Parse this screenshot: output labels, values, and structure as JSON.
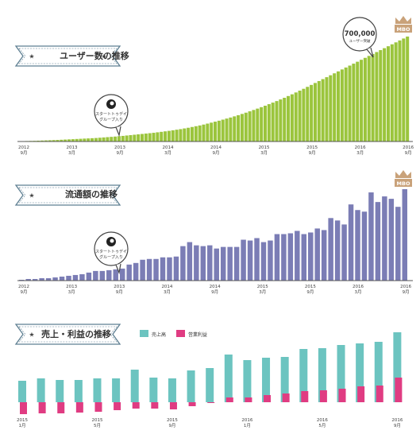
{
  "colors": {
    "green": "#9BC53D",
    "purple": "#7B7DB5",
    "teal": "#6CC4C0",
    "magenta": "#E03C82",
    "ribbon_border": "#5E7F92",
    "axis": "#555555",
    "crown": "#C9A27A"
  },
  "crown_label": "MBO",
  "callouts": {
    "startup_line1": "スタートトゥデイ",
    "startup_line2": "グループ入り",
    "users_value": "700,000",
    "users_unit": "ユーザー突破"
  },
  "chart_data": [
    {
      "type": "bar",
      "title": "ユーザー数の推移",
      "x_ticks": [
        {
          "i": 0,
          "year": "2012",
          "month": "9月"
        },
        {
          "i": 6,
          "year": "2013",
          "month": "3月"
        },
        {
          "i": 12,
          "year": "2013",
          "month": "9月"
        },
        {
          "i": 18,
          "year": "2014",
          "month": "3月"
        },
        {
          "i": 24,
          "year": "2014",
          "month": "9月"
        },
        {
          "i": 30,
          "year": "2015",
          "month": "3月"
        },
        {
          "i": 36,
          "year": "2015",
          "month": "9月"
        },
        {
          "i": 42,
          "year": "2016",
          "month": "3月"
        },
        {
          "i": 48,
          "year": "2016",
          "month": "9月"
        }
      ],
      "values": [
        3000,
        4000,
        5000,
        6000,
        7000,
        8500,
        10000,
        11500,
        13000,
        14500,
        16000,
        18000,
        20000,
        22000,
        24000,
        26000,
        28000,
        30000,
        32000,
        34000,
        36000,
        39000,
        42000,
        45000,
        48000,
        51000,
        55000,
        58000,
        62000,
        66000,
        70000,
        74000,
        78000,
        82000,
        86000,
        90000,
        95000,
        100000,
        105000,
        110000,
        116000,
        122000,
        128000,
        135000,
        142000,
        150000,
        158000,
        166000,
        175000,
        185000,
        195000,
        205000,
        215000,
        226000,
        237000,
        248000,
        260000,
        272000,
        285000,
        298000,
        312000,
        326000,
        340000,
        355000,
        370000,
        386000,
        402000,
        418000,
        435000,
        452000,
        470000,
        488000,
        507000,
        526000,
        545000,
        565000,
        585000,
        605000,
        625000,
        645000,
        665000,
        685000,
        705000,
        725000,
        745000,
        765000,
        785000,
        805000,
        825000,
        845000,
        865000,
        885000,
        905000,
        925000,
        945000,
        965000,
        985000,
        1005000,
        1025000,
        1045000,
        1065000,
        1085000
      ]
    },
    {
      "type": "bar",
      "title": "流通額の推移",
      "x_ticks": [
        {
          "i": 0,
          "year": "2012",
          "month": "9月"
        },
        {
          "i": 6,
          "year": "2013",
          "month": "3月"
        },
        {
          "i": 12,
          "year": "2013",
          "month": "9月"
        },
        {
          "i": 18,
          "year": "2014",
          "month": "3月"
        },
        {
          "i": 24,
          "year": "2014",
          "month": "9月"
        },
        {
          "i": 30,
          "year": "2015",
          "month": "3月"
        },
        {
          "i": 36,
          "year": "2015",
          "month": "9月"
        },
        {
          "i": 42,
          "year": "2016",
          "month": "3月"
        },
        {
          "i": 48,
          "year": "2016",
          "month": "9月"
        }
      ],
      "values": [
        1,
        2,
        2,
        3,
        3,
        4,
        5,
        6,
        7,
        8,
        10,
        12,
        12,
        13,
        14,
        15,
        20,
        22,
        26,
        27,
        27,
        29,
        29,
        30,
        43,
        48,
        44,
        43,
        44,
        40,
        42,
        42,
        42,
        51,
        50,
        53,
        48,
        50,
        58,
        58,
        59,
        62,
        58,
        60,
        65,
        63,
        78,
        75,
        70,
        95,
        88,
        86,
        110,
        98,
        105,
        102,
        92,
        114
      ]
    },
    {
      "type": "bar",
      "title": "売上・利益の推移",
      "legend": [
        "売上高",
        "営業利益"
      ],
      "x_ticks": [
        {
          "i": 0,
          "year": "2015",
          "month": "1月"
        },
        {
          "i": 4,
          "year": "2015",
          "month": "5月"
        },
        {
          "i": 8,
          "year": "2015",
          "month": "9月"
        },
        {
          "i": 12,
          "year": "2016",
          "month": "1月"
        },
        {
          "i": 16,
          "year": "2016",
          "month": "5月"
        },
        {
          "i": 20,
          "year": "2016",
          "month": "9月"
        }
      ],
      "series": [
        {
          "name": "売上高",
          "values": [
            27,
            30,
            28,
            28,
            30,
            30,
            41,
            31,
            30,
            40,
            43,
            60,
            53,
            56,
            57,
            67,
            68,
            72,
            74,
            76,
            88
          ]
        },
        {
          "name": "営業利益",
          "values": [
            -15,
            -14,
            -14,
            -13,
            -12,
            -10,
            -8,
            -8,
            -9,
            -5,
            -1,
            6,
            6,
            9,
            11,
            14,
            15,
            17,
            20,
            21,
            31
          ]
        }
      ]
    }
  ]
}
